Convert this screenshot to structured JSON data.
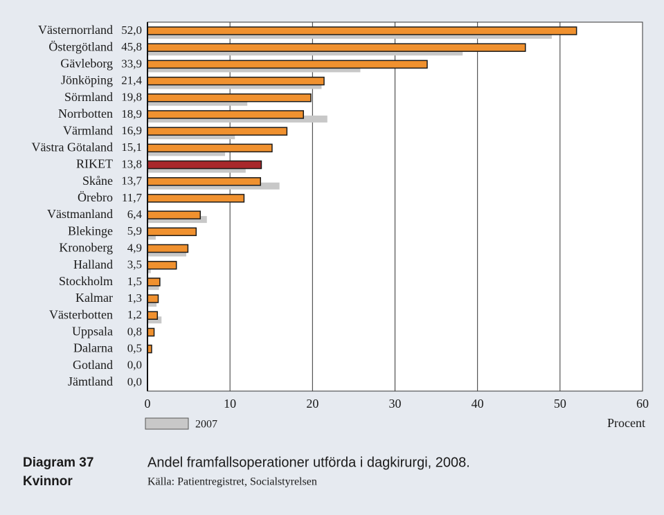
{
  "chart_data": {
    "type": "hbar",
    "diagram_label": "Diagram 37",
    "subtitle": "Kvinnor",
    "title": "Andel framfallsoperationer utförda i dagkirurgi, 2008.",
    "source": "Källa: Patientregistret, Socialstyrelsen",
    "x_label": "Procent",
    "categories": [
      "Västernorrland",
      "Östergötland",
      "Gävleborg",
      "Jönköping",
      "Sörmland",
      "Norrbotten",
      "Värmland",
      "Västra Götaland",
      "RIKET",
      "Skåne",
      "Örebro",
      "Västmanland",
      "Blekinge",
      "Kronoberg",
      "Halland",
      "Stockholm",
      "Kalmar",
      "Västerbotten",
      "Uppsala",
      "Dalarna",
      "Gotland",
      "Jämtland"
    ],
    "series": [
      {
        "values": [
          52.0,
          45.8,
          33.9,
          21.4,
          19.8,
          18.9,
          16.9,
          15.1,
          13.8,
          13.7,
          11.7,
          6.4,
          5.9,
          4.9,
          3.5,
          1.5,
          1.3,
          1.2,
          0.8,
          0.5,
          0.0,
          0.0
        ],
        "value_labels": [
          "52,0",
          "45,8",
          "33,9",
          "21,4",
          "19,8",
          "18,9",
          "16,9",
          "15,1",
          "13,8",
          "13,7",
          "11,7",
          "6,4",
          "5,9",
          "4,9",
          "3,5",
          "1,5",
          "1,3",
          "1,2",
          "0,8",
          "0,5",
          "0,0",
          "0,0"
        ],
        "color": "#f0912f",
        "colors": [
          "#f0912f",
          "#f0912f",
          "#f0912f",
          "#f0912f",
          "#f0912f",
          "#f0912f",
          "#f0912f",
          "#f0912f",
          "#a8282b",
          "#f0912f",
          "#f0912f",
          "#f0912f",
          "#f0912f",
          "#f0912f",
          "#f0912f",
          "#f0912f",
          "#f0912f",
          "#f0912f",
          "#f0912f",
          "#f0912f",
          "#f0912f",
          "#f0912f"
        ]
      },
      {
        "name": "2007",
        "color": "#c8c8c8",
        "values": [
          49.0,
          38.2,
          25.8,
          21.1,
          12.1,
          21.8,
          10.6,
          9.4,
          11.9,
          16.0,
          null,
          7.2,
          1.0,
          4.7,
          0.4,
          1.4,
          1.1,
          1.7,
          null,
          null,
          null,
          null
        ]
      }
    ],
    "xlim": [
      0,
      60
    ],
    "xticks": [
      0,
      10,
      20,
      30,
      40,
      50,
      60
    ],
    "grid": true
  }
}
